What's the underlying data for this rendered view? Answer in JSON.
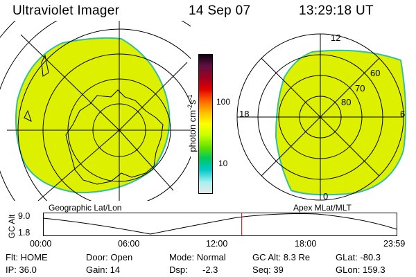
{
  "header": {
    "title": "Ultraviolet Imager",
    "date": "14 Sep 07",
    "time": "13:29:18 UT"
  },
  "geo_panel": {
    "label": "Geographic Lat/Lon"
  },
  "apex_panel": {
    "label": "Apex MLat/MLT",
    "mlt_labels": [
      "12",
      "18",
      "6",
      "0"
    ],
    "lat_labels": [
      "60",
      "70",
      "80"
    ]
  },
  "colorbar": {
    "unit": "photon cm",
    "unit_sup1": "-2",
    "unit_mid": "s",
    "unit_sup2": "-1",
    "ticks": [
      "100",
      "10"
    ],
    "scale": "log",
    "colors": [
      "#e8e8e8",
      "#a8f0f0",
      "#00c8c8",
      "#00c860",
      "#60e000",
      "#c8ff00",
      "#ffff00",
      "#ffc000",
      "#ff6000",
      "#e00000",
      "#a00020",
      "#601040",
      "#100010"
    ]
  },
  "image_color": "#ddf000",
  "image_edge_color": "#30c0a0",
  "altitude_plot": {
    "ylabel": "GC Alt",
    "y_ticks": [
      "9.0",
      "1.8"
    ],
    "x_ticks": [
      "00:00",
      "06:00",
      "12:00",
      "18:00",
      "23:59"
    ],
    "current_marker_hour": 13.49,
    "marker_color": "#d00000"
  },
  "footer": {
    "row1": {
      "flt": "Flt: HOME",
      "door": "Door: Open",
      "mode": "Mode: Normal",
      "gc_alt": "GC Alt: 8.3 Re",
      "glat": "GLat: -80.3"
    },
    "row2": {
      "ip": "IP: 36.0",
      "gain": "Gain: 14",
      "dsp_label": "Dsp:",
      "dsp_value": "-2.3",
      "seq": "Seq: 39",
      "glon": "GLon: 159.3"
    }
  }
}
